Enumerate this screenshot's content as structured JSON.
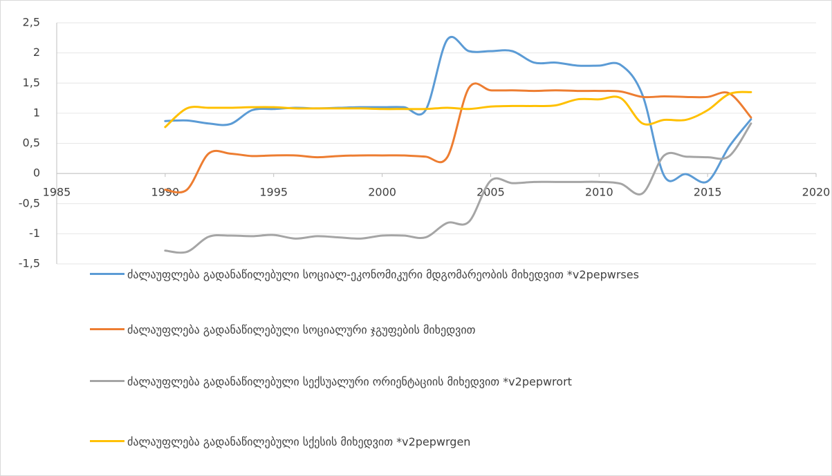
{
  "chart_data": {
    "type": "line",
    "x": [
      1990,
      1991,
      1992,
      1993,
      1994,
      1995,
      1996,
      1997,
      1998,
      1999,
      2000,
      2001,
      2002,
      2003,
      2004,
      2005,
      2006,
      2007,
      2008,
      2009,
      2010,
      2011,
      2012,
      2013,
      2014,
      2015,
      2016,
      2017
    ],
    "series": [
      {
        "name": "ძალაუფლება გადანაწილებული სოციალ-ეკონომიკური მდგომარეობის მიხედვით *v2pepwrses",
        "color": "#5b9bd5",
        "values": [
          0.87,
          0.88,
          0.83,
          0.82,
          1.05,
          1.07,
          1.09,
          1.08,
          1.09,
          1.1,
          1.1,
          1.1,
          1.05,
          2.22,
          2.03,
          2.03,
          2.03,
          1.84,
          1.84,
          1.79,
          1.79,
          1.8,
          1.3,
          -0.04,
          -0.01,
          -0.13,
          0.45,
          0.9
        ]
      },
      {
        "name": "ძალაუფლება გადანაწილებული სოციალური ჯგუფების მიხედვით",
        "color": "#ed7d31",
        "values": [
          -0.27,
          -0.27,
          0.33,
          0.33,
          0.29,
          0.3,
          0.3,
          0.27,
          0.29,
          0.3,
          0.3,
          0.3,
          0.28,
          0.27,
          1.42,
          1.38,
          1.38,
          1.37,
          1.38,
          1.37,
          1.37,
          1.36,
          1.27,
          1.28,
          1.27,
          1.27,
          1.33,
          0.93
        ]
      },
      {
        "name": "ძალაუფლება გადანაწილებული სექსუალური ორიენტაციის მიხედვით *v2pepwrort",
        "color": "#a5a5a5",
        "values": [
          -1.28,
          -1.3,
          -1.05,
          -1.03,
          -1.04,
          -1.02,
          -1.08,
          -1.04,
          -1.06,
          -1.08,
          -1.03,
          -1.03,
          -1.06,
          -0.82,
          -0.8,
          -0.12,
          -0.16,
          -0.14,
          -0.14,
          -0.14,
          -0.14,
          -0.17,
          -0.33,
          0.3,
          0.28,
          0.27,
          0.29,
          0.83
        ]
      },
      {
        "name": "ძალაუფლება გადანაწილებული სქესის მიხედვით *v2pepwrgen",
        "color": "#ffc000",
        "values": [
          0.77,
          1.08,
          1.09,
          1.09,
          1.1,
          1.1,
          1.08,
          1.08,
          1.08,
          1.08,
          1.07,
          1.07,
          1.07,
          1.09,
          1.07,
          1.11,
          1.12,
          1.12,
          1.13,
          1.23,
          1.23,
          1.25,
          0.83,
          0.89,
          0.89,
          1.05,
          1.32,
          1.35
        ]
      }
    ],
    "xlim": [
      1985,
      2020
    ],
    "xticks": [
      1985,
      1990,
      1995,
      2000,
      2005,
      2010,
      2015,
      2020
    ],
    "ylim": [
      -1.5,
      2.5
    ],
    "yticks": [
      {
        "value": -1.5,
        "label": "-1,5"
      },
      -1,
      {
        "value": -0.5,
        "label": "-0,5"
      },
      0,
      {
        "value": 0.5,
        "label": "0,5"
      },
      1,
      {
        "value": 1.5,
        "label": "1,5"
      },
      2,
      {
        "value": 2.5,
        "label": "2,5"
      }
    ],
    "grid": true,
    "legend": "bottom"
  }
}
